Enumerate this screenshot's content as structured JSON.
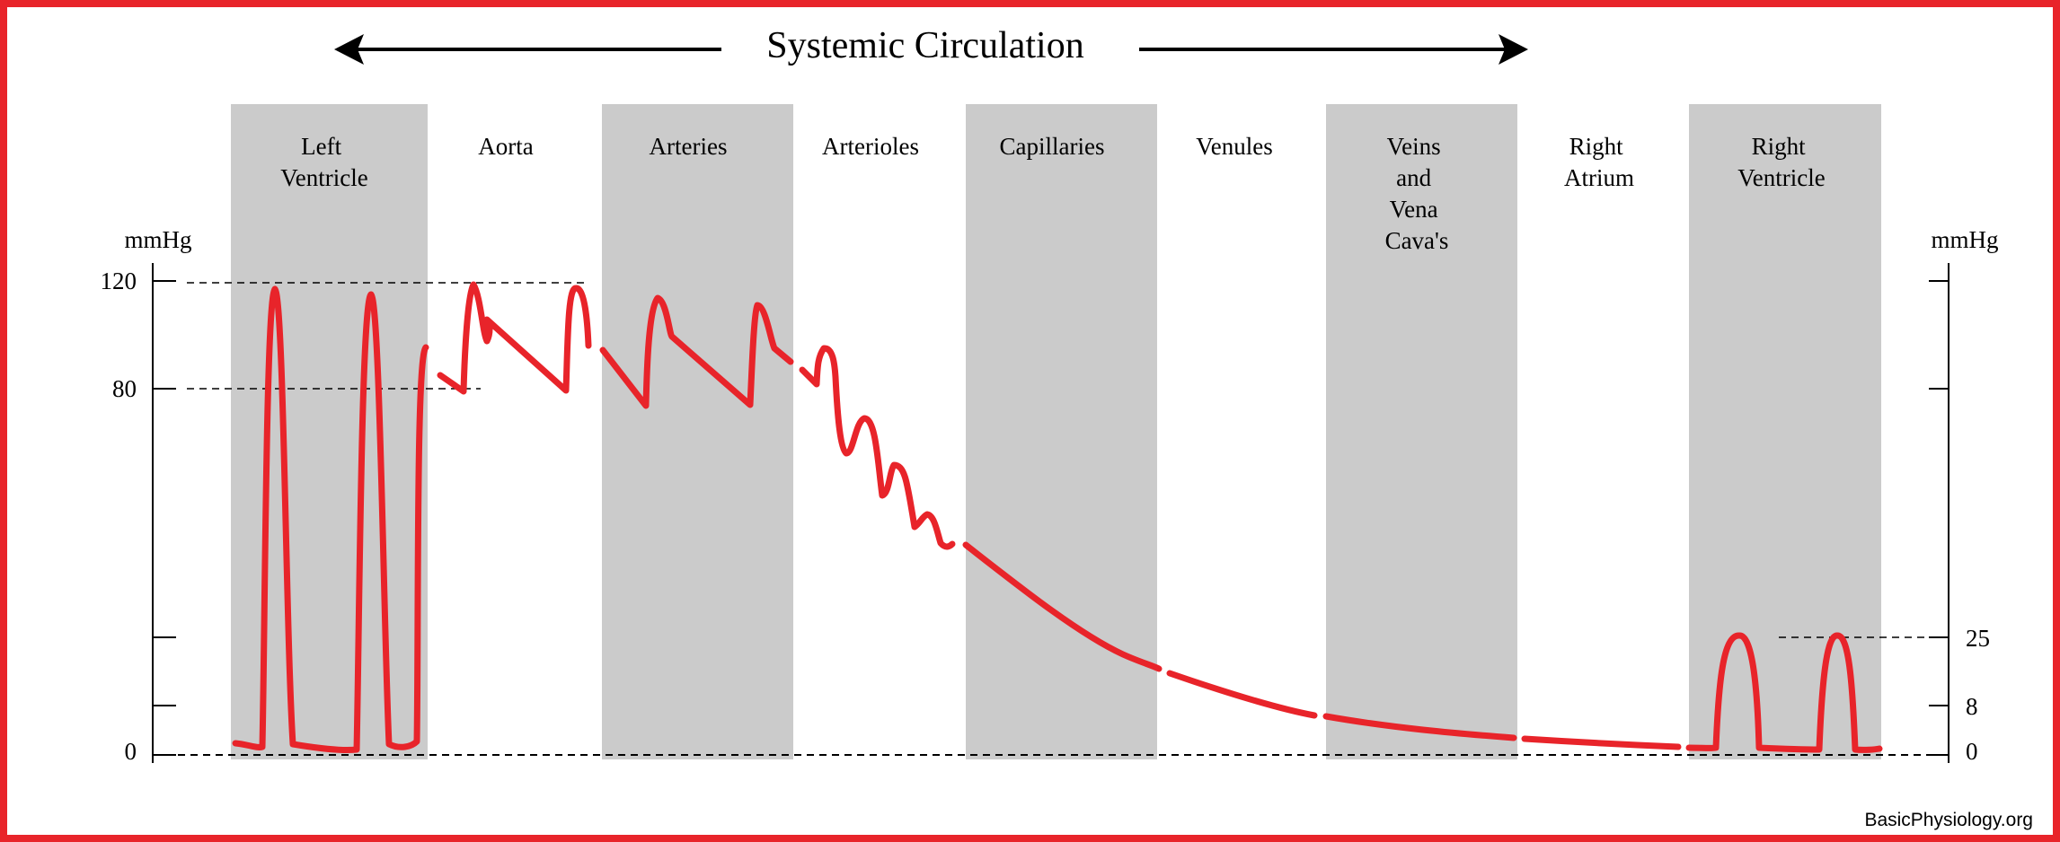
{
  "title": "Systemic Circulation",
  "y_axis_left": {
    "unit": "mmHg",
    "ticks": [
      "120",
      "80",
      "0"
    ]
  },
  "y_axis_right": {
    "unit": "mmHg",
    "ticks": [
      "25",
      "8",
      "0"
    ]
  },
  "regions": [
    {
      "label_lines": [
        "Left",
        "Ventricle"
      ],
      "shaded": true
    },
    {
      "label_lines": [
        "Aorta"
      ],
      "shaded": false
    },
    {
      "label_lines": [
        "Arteries"
      ],
      "shaded": true
    },
    {
      "label_lines": [
        "Arterioles"
      ],
      "shaded": false
    },
    {
      "label_lines": [
        "Capillaries"
      ],
      "shaded": true
    },
    {
      "label_lines": [
        "Venules"
      ],
      "shaded": false
    },
    {
      "label_lines": [
        "Veins",
        "and",
        "Vena",
        "Cava's"
      ],
      "shaded": true
    },
    {
      "label_lines": [
        "Right",
        "Atrium"
      ],
      "shaded": false
    },
    {
      "label_lines": [
        "Right",
        "Ventricle"
      ],
      "shaded": true
    }
  ],
  "colors": {
    "border": "#e8242a",
    "curve": "#e8242a",
    "shade": "#cbcbcb",
    "text": "#000000"
  },
  "credit": "BasicPhysiology.org"
}
